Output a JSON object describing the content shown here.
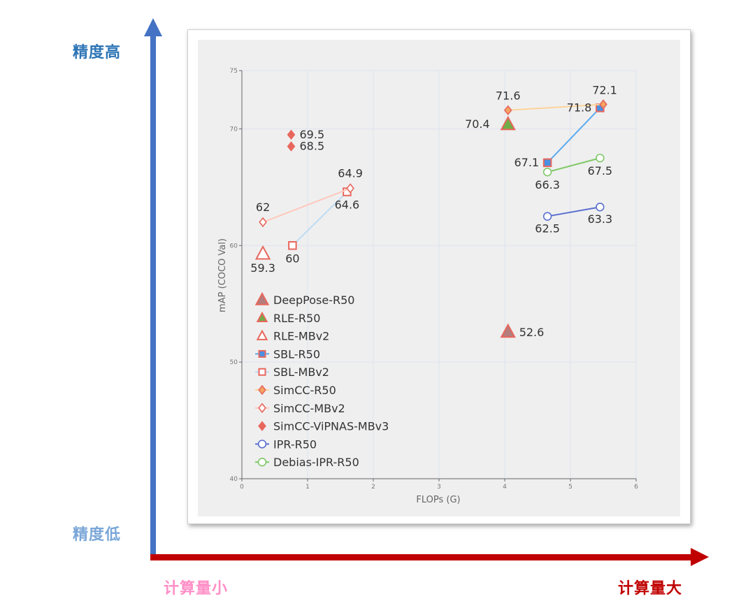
{
  "labels": {
    "high_accuracy": "精度高",
    "low_accuracy": "精度低",
    "low_compute": "计算量小",
    "high_compute": "计算量大"
  },
  "colors": {
    "y_arrow": "#4472c4",
    "x_arrow": "#c00000",
    "high_accuracy": "#2e75b6",
    "low_accuracy": "#7ba7d8",
    "low_compute": "#ff8fc7",
    "high_compute": "#c00000",
    "plot_bg": "#efefef"
  },
  "chart_data": {
    "type": "scatter",
    "xlabel": "FLOPs (G)",
    "ylabel": "mAP (COCO Val)",
    "xlim": [
      0,
      6
    ],
    "ylim": [
      40,
      75
    ],
    "xticks": [
      0,
      1,
      2,
      3,
      4,
      5,
      6
    ],
    "yticks": [
      40,
      50,
      60,
      70,
      75
    ],
    "grid": true,
    "legend_position": "bottom-left",
    "series": [
      {
        "name": "DeepPose-R50",
        "marker": "triangle",
        "fill": "#b57c7c",
        "stroke": "#e8675d",
        "line": false,
        "points": [
          {
            "x": 4.05,
            "y": 52.6,
            "label": "52.6"
          }
        ]
      },
      {
        "name": "RLE-R50",
        "marker": "triangle",
        "fill": "#70ad47",
        "stroke": "#e8675d",
        "line": false,
        "points": [
          {
            "x": 4.05,
            "y": 70.4,
            "label": "70.4"
          }
        ]
      },
      {
        "name": "RLE-MBv2",
        "marker": "triangle",
        "fill": "#ffffff",
        "stroke": "#e8675d",
        "line": false,
        "points": [
          {
            "x": 0.32,
            "y": 59.3,
            "label": "59.3"
          }
        ]
      },
      {
        "name": "SBL-R50",
        "marker": "square",
        "fill": "#4a90e2",
        "stroke": "#e8675d",
        "line": true,
        "line_color": "#5aaaf0",
        "points": [
          {
            "x": 4.65,
            "y": 67.1,
            "label": "67.1"
          },
          {
            "x": 5.45,
            "y": 71.8,
            "label": "71.8"
          }
        ]
      },
      {
        "name": "SBL-MBv2",
        "marker": "square",
        "fill": "#ffffff",
        "stroke": "#e8675d",
        "line": true,
        "line_color": "#bcdcf5",
        "points": [
          {
            "x": 0.77,
            "y": 60,
            "label": "60"
          },
          {
            "x": 1.6,
            "y": 64.6,
            "label": "64.6"
          }
        ]
      },
      {
        "name": "SimCC-R50",
        "marker": "diamond",
        "fill": "#f4a460",
        "stroke": "#e8675d",
        "line": true,
        "line_color": "#fcd49a",
        "points": [
          {
            "x": 4.05,
            "y": 71.6,
            "label": "71.6"
          },
          {
            "x": 5.5,
            "y": 72.1,
            "label": "72.1"
          }
        ]
      },
      {
        "name": "SimCC-MBv2",
        "marker": "diamond",
        "fill": "#ffffff",
        "stroke": "#e8675d",
        "line": true,
        "line_color": "#ffc8bd",
        "points": [
          {
            "x": 0.32,
            "y": 62,
            "label": "62"
          },
          {
            "x": 1.65,
            "y": 64.9,
            "label": "64.9"
          }
        ]
      },
      {
        "name": "SimCC-ViPNAS-MBv3",
        "marker": "diamond",
        "fill": "#e8675d",
        "stroke": "#e8675d",
        "line": false,
        "points": [
          {
            "x": 0.75,
            "y": 69.5,
            "label": "69.5"
          },
          {
            "x": 0.75,
            "y": 68.5,
            "label": "68.5"
          }
        ]
      },
      {
        "name": "IPR-R50",
        "marker": "circle",
        "fill": "#ffffff",
        "stroke": "#5a6fd0",
        "line": true,
        "line_color": "#5a6fd0",
        "points": [
          {
            "x": 4.65,
            "y": 62.5,
            "label": "62.5"
          },
          {
            "x": 5.45,
            "y": 63.3,
            "label": "63.3"
          }
        ]
      },
      {
        "name": "Debias-IPR-R50",
        "marker": "circle",
        "fill": "#ffffff",
        "stroke": "#7ec866",
        "line": true,
        "line_color": "#7ec866",
        "points": [
          {
            "x": 4.65,
            "y": 66.3,
            "label": "66.3"
          },
          {
            "x": 5.45,
            "y": 67.5,
            "label": "67.5"
          }
        ]
      }
    ]
  }
}
